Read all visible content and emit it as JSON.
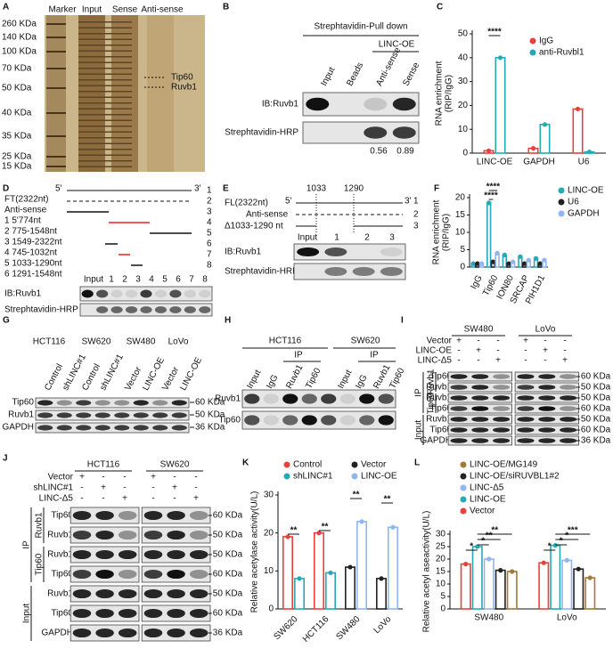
{
  "panels": {
    "A": {
      "letter": "A",
      "lanes": [
        "Marker",
        "Input",
        "Sense",
        "Anti-sense"
      ],
      "markers": [
        "260 KDa",
        "140 KDa",
        "100 KDa",
        "70 KDa",
        "50 KDa",
        "40 KDa",
        "35 KDa",
        "25 KDa",
        "15 KDa"
      ],
      "bands": [
        "Tip60",
        "Ruvb1"
      ]
    },
    "B": {
      "letter": "B",
      "header": "Strephtavidin-Pull down",
      "group": "LINC-OE",
      "lanes": [
        "Input",
        "Beads",
        "Anti-sense",
        "Sense"
      ],
      "rows": [
        "IB:Ruvb1",
        "Strephtavidin-HRP"
      ],
      "quant": [
        "0.56",
        "0.89"
      ]
    },
    "D": {
      "letter": "D",
      "full": "FT(2322nt)",
      "five": "5'",
      "three": "3'",
      "antisense": "Anti-sense",
      "fragments": [
        "1 5'774nt",
        "2 775-1548nt",
        "3 1549-2322nt",
        "4 745-1032nt",
        "5 1033-1290nt",
        "6 1291-1548nt"
      ],
      "numbers": [
        "1",
        "2",
        "3",
        "4",
        "5",
        "6",
        "7",
        "8"
      ],
      "lanes": [
        "Input",
        "1",
        "2",
        "3",
        "4",
        "5",
        "6",
        "7",
        "8"
      ],
      "rows": [
        "IB:Ruvb1",
        "Strephtavidin-HRP"
      ]
    },
    "E": {
      "letter": "E",
      "full": "FL(2322nt)",
      "five": "5'",
      "three": "3'",
      "sites": [
        "1033",
        "1290"
      ],
      "antisense": "Anti-sense",
      "deletion": "Δ1033-1290 nt",
      "numbers": [
        "1",
        "2",
        "3"
      ],
      "lanes": [
        "Input",
        "1",
        "2",
        "3"
      ],
      "rows": [
        "IB:Ruvb1",
        "Strephtavidin-HRP"
      ]
    },
    "G": {
      "letter": "G",
      "cells": [
        "HCT116",
        "SW620",
        "SW480",
        "LoVo"
      ],
      "lanes": [
        "Control",
        "shLINC#1",
        "Control",
        "shLINC#1",
        "Vector",
        "LINC-OE",
        "Vector",
        "LINC-OE"
      ],
      "rows": [
        "Tip60",
        "Ruvb1",
        "GAPDH"
      ],
      "sizes": [
        "60 KDa",
        "50 KDa",
        "36 KDa"
      ]
    },
    "H": {
      "letter": "H",
      "cells": [
        "HCT116",
        "SW620"
      ],
      "ip": [
        "IP",
        "IP"
      ],
      "lanes": [
        "Input",
        "IgG",
        "Ruvb1",
        "Tip60",
        "Input",
        "IgG",
        "Ruvb1",
        "Tip60"
      ],
      "rows": [
        "Ruvb1",
        "Tip60"
      ]
    },
    "I": {
      "letter": "I",
      "cells": [
        "SW480",
        "LoVo"
      ],
      "conditions": [
        "Vector",
        "LINC-OE",
        "LINC-Δ5"
      ],
      "signs": [
        [
          "+",
          "-",
          "-",
          "+",
          "-",
          "-"
        ],
        [
          "-",
          "+",
          "-",
          "-",
          "+",
          "-"
        ],
        [
          "-",
          "-",
          "+",
          "-",
          "-",
          "+"
        ]
      ],
      "groups": [
        "IP",
        "Ruvb1",
        "Tip60",
        "Input"
      ],
      "rows": [
        "Tip60",
        "Ruvb1",
        "Ruvb1",
        "Tip60",
        "Ruvb1",
        "Tip60",
        "GAPDH"
      ],
      "sizes": [
        "60 KDa",
        "50 KDa",
        "50 KDa",
        "60 KDa",
        "50 KDa",
        "60 KDa",
        "36 KDa"
      ]
    },
    "J": {
      "letter": "J",
      "cells": [
        "HCT116",
        "SW620"
      ],
      "conditions": [
        "Vector",
        "shLINC#1",
        "LINC-Δ5"
      ],
      "signs": [
        [
          "+",
          "-",
          "-",
          "+",
          "-",
          "-"
        ],
        [
          "-",
          "+",
          "-",
          "-",
          "+",
          "-"
        ],
        [
          "-",
          "-",
          "+",
          "-",
          "-",
          "+"
        ]
      ],
      "groups": [
        "IP",
        "Ruvb1",
        "Tip60",
        "Input"
      ],
      "rows": [
        "Tip60",
        "Ruvb1",
        "Ruvb1",
        "Tip60",
        "Ruvb1",
        "Tip60",
        "GAPDH"
      ],
      "sizes": [
        "60 KDa",
        "50 KDa",
        "50 KDa",
        "60 KDa",
        "50 KDa",
        "60 KDa",
        "36 KDa"
      ]
    }
  },
  "chart_data": [
    {
      "type": "bar",
      "panel": "C",
      "y_label": [
        "RNA enrichment",
        "(RIP/IgG)"
      ],
      "categories": [
        "LINC-OE",
        "GAPDH",
        "U6"
      ],
      "series": [
        {
          "name": "IgG",
          "color": "#e8413c",
          "values": [
            1,
            2,
            18.5
          ]
        },
        {
          "name": "anti-Ruvbl1",
          "color": "#27a9b5",
          "values": [
            40,
            12,
            0.5
          ]
        }
      ],
      "ylim": [
        0,
        50
      ],
      "yticks": [
        0,
        10,
        20,
        30,
        40,
        50
      ],
      "annotations": [
        "****"
      ]
    },
    {
      "type": "bar",
      "panel": "F",
      "y_label": [
        "RNA enrichment",
        "(RIP/IgG)"
      ],
      "categories": [
        "IgG",
        "Tip60",
        "ION80",
        "SRCAP",
        "PIH1D1"
      ],
      "series": [
        {
          "name": "LINC-OE",
          "color": "#27a9b5",
          "values": [
            1,
            18.5,
            3.5,
            3,
            2.5
          ]
        },
        {
          "name": "U6",
          "color": "#222222",
          "values": [
            1,
            1.5,
            1,
            1,
            1
          ]
        },
        {
          "name": "GAPDH",
          "color": "#8fb6f0",
          "values": [
            1,
            4,
            1.5,
            2,
            2
          ]
        }
      ],
      "ylim": [
        0,
        20
      ],
      "yticks": [
        0,
        5,
        10,
        15,
        20
      ],
      "annotations": [
        "****",
        "****"
      ]
    },
    {
      "type": "bar",
      "panel": "K",
      "y_label": [
        "Relative acetylase activity(U/L)"
      ],
      "categories": [
        "SW620",
        "HCT116",
        "SW480",
        "LoVo"
      ],
      "series": [
        {
          "name": "Control",
          "color": "#e8413c",
          "values": [
            19,
            20,
            null,
            null
          ]
        },
        {
          "name": "shLINC#1",
          "color": "#27a9b5",
          "values": [
            8,
            9.5,
            null,
            null
          ]
        },
        {
          "name": "Vector",
          "color": "#222222",
          "values": [
            null,
            null,
            11,
            8
          ]
        },
        {
          "name": "LINC-OE",
          "color": "#8fb6f0",
          "values": [
            null,
            null,
            23,
            21.5
          ]
        }
      ],
      "ylim": [
        0,
        30
      ],
      "yticks": [
        0,
        10,
        20,
        30
      ],
      "annotations": [
        "**",
        "**",
        "**",
        "**"
      ]
    },
    {
      "type": "bar",
      "panel": "L",
      "y_label": [
        "Relative acetyl aseactivity(U/L)"
      ],
      "categories": [
        "SW480",
        "LoVo"
      ],
      "series": [
        {
          "name": "Vector",
          "color": "#e8413c",
          "values": [
            18,
            18.5
          ]
        },
        {
          "name": "LINC-OE",
          "color": "#27a9b5",
          "values": [
            25,
            25.5
          ]
        },
        {
          "name": "LINC-Δ5",
          "color": "#8fb6f0",
          "values": [
            20,
            19.5
          ]
        },
        {
          "name": "LINC-OE/siRUVBL1#2",
          "color": "#222222",
          "values": [
            15.5,
            16
          ]
        },
        {
          "name": "LINC-OE/MG149",
          "color": "#a07a3a",
          "values": [
            15,
            12.5
          ]
        }
      ],
      "ylim": [
        0,
        30
      ],
      "yticks": [
        0,
        5,
        10,
        15,
        20,
        25,
        30
      ],
      "annotations": [
        "*",
        "*",
        "**",
        "**",
        "*",
        "*",
        "*",
        "***"
      ]
    }
  ]
}
